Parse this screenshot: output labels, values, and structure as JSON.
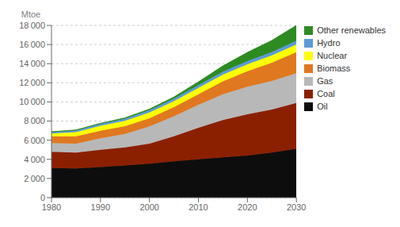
{
  "chart_data": {
    "type": "area",
    "stacked": true,
    "ylabel": "Mtoe",
    "x": [
      1980,
      1985,
      1990,
      1995,
      2000,
      2005,
      2010,
      2015,
      2020,
      2025,
      2030
    ],
    "series": [
      {
        "name": "Oil",
        "color": "#0d0d0d",
        "values": [
          3100,
          3050,
          3200,
          3350,
          3550,
          3800,
          4000,
          4200,
          4400,
          4700,
          5100
        ]
      },
      {
        "name": "Coal",
        "color": "#8B2000",
        "values": [
          1700,
          1650,
          1800,
          1900,
          2100,
          2600,
          3300,
          3900,
          4300,
          4500,
          4800
        ]
      },
      {
        "name": "Gas",
        "color": "#B8B8B8",
        "values": [
          900,
          950,
          1200,
          1400,
          1800,
          2100,
          2400,
          2700,
          2900,
          3000,
          3100
        ]
      },
      {
        "name": "Biomass",
        "color": "#E07820",
        "values": [
          700,
          750,
          780,
          820,
          850,
          950,
          1100,
          1350,
          1600,
          1900,
          2200
        ]
      },
      {
        "name": "Nuclear",
        "color": "#FFFF00",
        "values": [
          300,
          450,
          520,
          560,
          600,
          630,
          660,
          700,
          730,
          760,
          800
        ]
      },
      {
        "name": "Hydro",
        "color": "#5B9BD5",
        "values": [
          160,
          190,
          210,
          230,
          250,
          270,
          290,
          310,
          340,
          370,
          400
        ]
      },
      {
        "name": "Other renewables",
        "color": "#2E8B22",
        "values": [
          20,
          30,
          50,
          70,
          100,
          160,
          350,
          600,
          900,
          1200,
          1600
        ]
      }
    ],
    "xlim": [
      1980,
      2030
    ],
    "xticks": [
      1980,
      1990,
      2000,
      2010,
      2020,
      2030
    ],
    "ylim": [
      0,
      18000
    ],
    "yticks": [
      0,
      {
        "value": 2000,
        "label": "2 000"
      },
      {
        "value": 4000,
        "label": "4 000"
      },
      {
        "value": 6000,
        "label": "6 000"
      },
      {
        "value": 8000,
        "label": "8 000"
      },
      {
        "value": 10000,
        "label": "10 000"
      },
      {
        "value": 12000,
        "label": "12 000"
      },
      {
        "value": 14000,
        "label": "14 000"
      },
      {
        "value": 16000,
        "label": "16 000"
      },
      {
        "value": 18000,
        "label": "18 000"
      }
    ],
    "grid": true,
    "legend": "right"
  }
}
